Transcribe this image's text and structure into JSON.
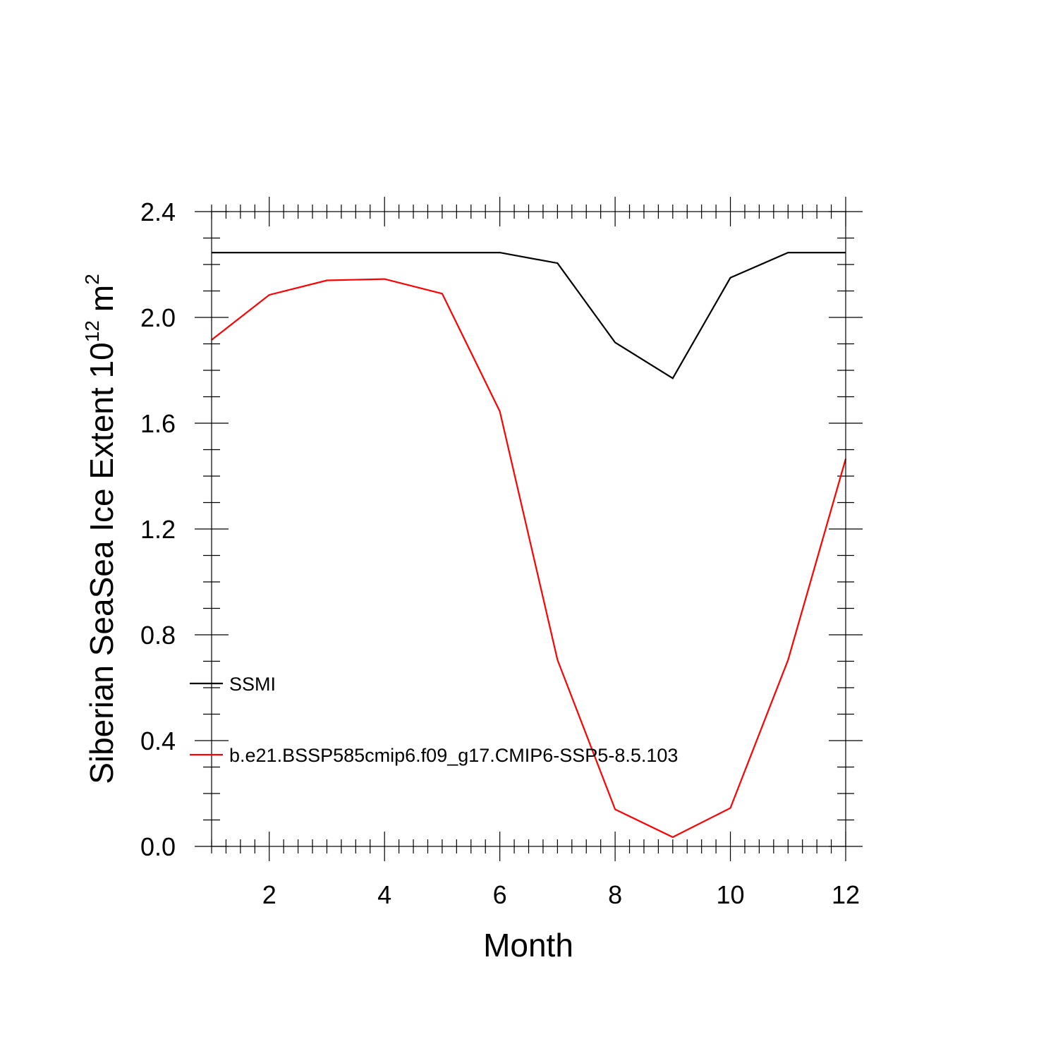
{
  "chart_data": {
    "type": "line",
    "title": "",
    "xlabel": "Month",
    "ylabel": {
      "text": "Siberian SeaSea Ice Extent 10",
      "superscript": "12",
      "unit": "m",
      "unit_superscript": "2"
    },
    "xlim": [
      1,
      12
    ],
    "ylim": [
      0,
      2.4
    ],
    "x_major_ticks": [
      2,
      4,
      6,
      8,
      10,
      12
    ],
    "x_tick_labels": [
      "2",
      "4",
      "6",
      "8",
      "10",
      "12"
    ],
    "y_major_ticks": [
      0,
      0.4,
      0.8,
      1.2,
      1.6,
      2.0,
      2.4
    ],
    "y_tick_labels": [
      "0.0",
      "0.4",
      "0.8",
      "1.2",
      "1.6",
      "2.0",
      "2.4"
    ],
    "grid": false,
    "legend_position": "left",
    "x": [
      1,
      2,
      3,
      4,
      5,
      6,
      7,
      8,
      9,
      10,
      11,
      12
    ],
    "series": [
      {
        "name": "SSMI",
        "color": "#000000",
        "values": [
          2.245,
          2.245,
          2.245,
          2.245,
          2.245,
          2.245,
          2.205,
          1.905,
          1.77,
          2.15,
          2.245,
          2.245
        ]
      },
      {
        "name": "b.e21.BSSP585cmip6.f09_g17.CMIP6-SSP5-8.5.103",
        "color": "#ff0000",
        "values": [
          1.915,
          2.085,
          2.14,
          2.145,
          2.09,
          1.645,
          0.705,
          0.14,
          0.035,
          0.145,
          0.705,
          1.465
        ]
      }
    ]
  }
}
